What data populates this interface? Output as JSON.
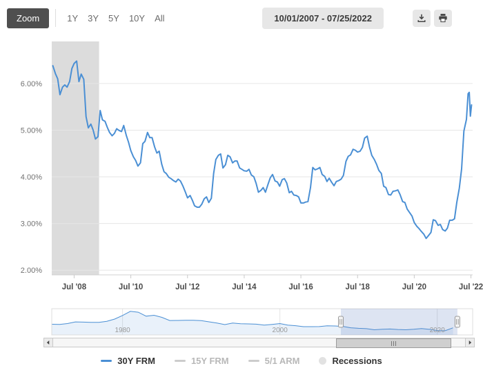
{
  "toolbar": {
    "zoom_label": "Zoom",
    "range_buttons": [
      "1Y",
      "3Y",
      "5Y",
      "10Y",
      "All"
    ],
    "date_range": "10/01/2007 - 07/25/2022"
  },
  "colors": {
    "accent_blue": "#4a8fd4",
    "recession_band": "#dcdcdc",
    "zoom_button_bg": "#4f4f4f",
    "toolbar_button_bg": "#e7e7e7"
  },
  "legend": {
    "items": [
      {
        "label": "30Y FRM",
        "swatch_color": "#4a8fd4",
        "text_color": "#333333",
        "type": "line",
        "active": true
      },
      {
        "label": "15Y FRM",
        "swatch_color": "#cccccc",
        "text_color": "#b8b8b8",
        "type": "line",
        "active": false
      },
      {
        "label": "5/1 ARM",
        "swatch_color": "#cccccc",
        "text_color": "#b8b8b8",
        "type": "line",
        "active": false
      },
      {
        "label": "Recessions",
        "swatch_color": "#e2e2e2",
        "text_color": "#333333",
        "type": "circle",
        "active": true
      }
    ]
  },
  "chart_data": [
    {
      "id": "main",
      "type": "line",
      "title": "",
      "xlabel": "",
      "ylabel": "",
      "grid": true,
      "xlim": [
        2007.75,
        2022.6
      ],
      "ylim": [
        1.9,
        6.9
      ],
      "yticks": [
        {
          "v": 2,
          "label": "2.00%"
        },
        {
          "v": 3,
          "label": "3.00%"
        },
        {
          "v": 4,
          "label": "4.00%"
        },
        {
          "v": 5,
          "label": "5.00%"
        },
        {
          "v": 6,
          "label": "6.00%"
        }
      ],
      "xticks": [
        {
          "v": 2008.54,
          "label": "Jul '08"
        },
        {
          "v": 2010.54,
          "label": "Jul '10"
        },
        {
          "v": 2012.54,
          "label": "Jul '12"
        },
        {
          "v": 2014.54,
          "label": "Jul '14"
        },
        {
          "v": 2016.54,
          "label": "Jul '16"
        },
        {
          "v": 2018.54,
          "label": "Jul '18"
        },
        {
          "v": 2020.54,
          "label": "Jul '20"
        },
        {
          "v": 2022.54,
          "label": "Jul '22"
        }
      ],
      "recession_bands": [
        {
          "start": 2007.75,
          "end": 2009.42,
          "color": "#dcdcdc"
        }
      ],
      "series": [
        {
          "name": "30Y FRM",
          "color": "#4a8fd4",
          "unit": "%",
          "points": [
            [
              2007.79,
              6.38
            ],
            [
              2007.88,
              6.21
            ],
            [
              2007.96,
              6.1
            ],
            [
              2008.04,
              5.76
            ],
            [
              2008.13,
              5.92
            ],
            [
              2008.21,
              5.97
            ],
            [
              2008.29,
              5.92
            ],
            [
              2008.38,
              6.04
            ],
            [
              2008.46,
              6.32
            ],
            [
              2008.54,
              6.43
            ],
            [
              2008.63,
              6.48
            ],
            [
              2008.71,
              6.04
            ],
            [
              2008.79,
              6.2
            ],
            [
              2008.88,
              6.09
            ],
            [
              2008.96,
              5.29
            ],
            [
              2009.04,
              5.05
            ],
            [
              2009.13,
              5.13
            ],
            [
              2009.21,
              5.0
            ],
            [
              2009.29,
              4.81
            ],
            [
              2009.38,
              4.86
            ],
            [
              2009.46,
              5.42
            ],
            [
              2009.54,
              5.22
            ],
            [
              2009.63,
              5.19
            ],
            [
              2009.71,
              5.06
            ],
            [
              2009.79,
              4.95
            ],
            [
              2009.88,
              4.88
            ],
            [
              2009.96,
              4.93
            ],
            [
              2010.04,
              5.03
            ],
            [
              2010.13,
              4.99
            ],
            [
              2010.21,
              4.97
            ],
            [
              2010.29,
              5.1
            ],
            [
              2010.38,
              4.89
            ],
            [
              2010.46,
              4.74
            ],
            [
              2010.54,
              4.56
            ],
            [
              2010.63,
              4.43
            ],
            [
              2010.71,
              4.35
            ],
            [
              2010.79,
              4.23
            ],
            [
              2010.88,
              4.3
            ],
            [
              2010.96,
              4.71
            ],
            [
              2011.04,
              4.76
            ],
            [
              2011.13,
              4.95
            ],
            [
              2011.21,
              4.84
            ],
            [
              2011.29,
              4.84
            ],
            [
              2011.38,
              4.64
            ],
            [
              2011.46,
              4.51
            ],
            [
              2011.54,
              4.55
            ],
            [
              2011.63,
              4.27
            ],
            [
              2011.71,
              4.11
            ],
            [
              2011.79,
              4.07
            ],
            [
              2011.88,
              3.99
            ],
            [
              2011.96,
              3.96
            ],
            [
              2012.04,
              3.92
            ],
            [
              2012.13,
              3.89
            ],
            [
              2012.21,
              3.95
            ],
            [
              2012.29,
              3.91
            ],
            [
              2012.38,
              3.8
            ],
            [
              2012.46,
              3.68
            ],
            [
              2012.54,
              3.55
            ],
            [
              2012.63,
              3.6
            ],
            [
              2012.71,
              3.5
            ],
            [
              2012.79,
              3.38
            ],
            [
              2012.88,
              3.35
            ],
            [
              2012.96,
              3.35
            ],
            [
              2013.04,
              3.41
            ],
            [
              2013.13,
              3.53
            ],
            [
              2013.21,
              3.57
            ],
            [
              2013.29,
              3.45
            ],
            [
              2013.38,
              3.54
            ],
            [
              2013.46,
              4.07
            ],
            [
              2013.54,
              4.37
            ],
            [
              2013.63,
              4.46
            ],
            [
              2013.71,
              4.49
            ],
            [
              2013.79,
              4.19
            ],
            [
              2013.88,
              4.26
            ],
            [
              2013.96,
              4.46
            ],
            [
              2014.04,
              4.43
            ],
            [
              2014.13,
              4.3
            ],
            [
              2014.21,
              4.34
            ],
            [
              2014.29,
              4.34
            ],
            [
              2014.38,
              4.19
            ],
            [
              2014.46,
              4.16
            ],
            [
              2014.54,
              4.13
            ],
            [
              2014.63,
              4.12
            ],
            [
              2014.71,
              4.16
            ],
            [
              2014.79,
              4.04
            ],
            [
              2014.88,
              4.0
            ],
            [
              2014.96,
              3.86
            ],
            [
              2015.04,
              3.67
            ],
            [
              2015.13,
              3.71
            ],
            [
              2015.21,
              3.77
            ],
            [
              2015.29,
              3.67
            ],
            [
              2015.38,
              3.84
            ],
            [
              2015.46,
              3.98
            ],
            [
              2015.54,
              4.05
            ],
            [
              2015.63,
              3.91
            ],
            [
              2015.71,
              3.89
            ],
            [
              2015.79,
              3.8
            ],
            [
              2015.88,
              3.94
            ],
            [
              2015.96,
              3.96
            ],
            [
              2016.04,
              3.87
            ],
            [
              2016.13,
              3.66
            ],
            [
              2016.21,
              3.69
            ],
            [
              2016.29,
              3.61
            ],
            [
              2016.38,
              3.6
            ],
            [
              2016.46,
              3.57
            ],
            [
              2016.54,
              3.44
            ],
            [
              2016.63,
              3.44
            ],
            [
              2016.71,
              3.46
            ],
            [
              2016.79,
              3.47
            ],
            [
              2016.88,
              3.77
            ],
            [
              2016.96,
              4.2
            ],
            [
              2017.04,
              4.15
            ],
            [
              2017.13,
              4.17
            ],
            [
              2017.21,
              4.2
            ],
            [
              2017.29,
              4.05
            ],
            [
              2017.38,
              4.01
            ],
            [
              2017.46,
              3.9
            ],
            [
              2017.54,
              3.97
            ],
            [
              2017.63,
              3.88
            ],
            [
              2017.71,
              3.81
            ],
            [
              2017.79,
              3.9
            ],
            [
              2017.88,
              3.92
            ],
            [
              2017.96,
              3.95
            ],
            [
              2018.04,
              4.03
            ],
            [
              2018.13,
              4.33
            ],
            [
              2018.21,
              4.44
            ],
            [
              2018.29,
              4.47
            ],
            [
              2018.38,
              4.59
            ],
            [
              2018.46,
              4.57
            ],
            [
              2018.54,
              4.53
            ],
            [
              2018.63,
              4.55
            ],
            [
              2018.71,
              4.63
            ],
            [
              2018.79,
              4.83
            ],
            [
              2018.88,
              4.87
            ],
            [
              2018.96,
              4.64
            ],
            [
              2019.04,
              4.46
            ],
            [
              2019.13,
              4.37
            ],
            [
              2019.21,
              4.27
            ],
            [
              2019.29,
              4.14
            ],
            [
              2019.38,
              4.07
            ],
            [
              2019.46,
              3.8
            ],
            [
              2019.54,
              3.77
            ],
            [
              2019.63,
              3.62
            ],
            [
              2019.71,
              3.61
            ],
            [
              2019.79,
              3.69
            ],
            [
              2019.88,
              3.7
            ],
            [
              2019.96,
              3.72
            ],
            [
              2020.04,
              3.62
            ],
            [
              2020.13,
              3.47
            ],
            [
              2020.21,
              3.45
            ],
            [
              2020.29,
              3.31
            ],
            [
              2020.38,
              3.23
            ],
            [
              2020.46,
              3.16
            ],
            [
              2020.54,
              3.02
            ],
            [
              2020.63,
              2.94
            ],
            [
              2020.71,
              2.89
            ],
            [
              2020.79,
              2.83
            ],
            [
              2020.88,
              2.77
            ],
            [
              2020.96,
              2.68
            ],
            [
              2021.04,
              2.74
            ],
            [
              2021.13,
              2.81
            ],
            [
              2021.21,
              3.08
            ],
            [
              2021.29,
              3.06
            ],
            [
              2021.38,
              2.96
            ],
            [
              2021.46,
              2.98
            ],
            [
              2021.54,
              2.87
            ],
            [
              2021.63,
              2.84
            ],
            [
              2021.71,
              2.9
            ],
            [
              2021.79,
              3.07
            ],
            [
              2021.88,
              3.07
            ],
            [
              2021.96,
              3.1
            ],
            [
              2022.04,
              3.45
            ],
            [
              2022.13,
              3.76
            ],
            [
              2022.21,
              4.17
            ],
            [
              2022.29,
              4.98
            ],
            [
              2022.38,
              5.23
            ],
            [
              2022.44,
              5.78
            ],
            [
              2022.48,
              5.81
            ],
            [
              2022.52,
              5.3
            ],
            [
              2022.56,
              5.54
            ]
          ]
        }
      ]
    },
    {
      "id": "navigator",
      "type": "area",
      "xlim": [
        1971,
        2024.5
      ],
      "ylim": [
        0,
        18.5
      ],
      "xticks": [
        {
          "v": 1980,
          "label": "1980"
        },
        {
          "v": 2000,
          "label": "2000"
        },
        {
          "v": 2020,
          "label": "2020"
        }
      ],
      "selected_range": [
        2007.75,
        2022.56
      ],
      "series": [
        {
          "name": "30Y FRM full history",
          "color": "#4a8fd4",
          "unit": "%",
          "points": [
            [
              1971,
              7.54
            ],
            [
              1972,
              7.38
            ],
            [
              1973,
              8.04
            ],
            [
              1974,
              9.19
            ],
            [
              1975,
              9.05
            ],
            [
              1976,
              8.87
            ],
            [
              1977,
              8.85
            ],
            [
              1978,
              9.64
            ],
            [
              1979,
              11.2
            ],
            [
              1980,
              13.74
            ],
            [
              1981,
              16.63
            ],
            [
              1982,
              16.04
            ],
            [
              1983,
              13.24
            ],
            [
              1984,
              13.88
            ],
            [
              1985,
              12.43
            ],
            [
              1986,
              10.19
            ],
            [
              1987,
              10.21
            ],
            [
              1988,
              10.34
            ],
            [
              1989,
              10.32
            ],
            [
              1990,
              10.13
            ],
            [
              1991,
              9.25
            ],
            [
              1992,
              8.39
            ],
            [
              1993,
              7.31
            ],
            [
              1994,
              8.38
            ],
            [
              1995,
              7.93
            ],
            [
              1996,
              7.81
            ],
            [
              1997,
              7.6
            ],
            [
              1998,
              6.94
            ],
            [
              1999,
              7.44
            ],
            [
              2000,
              8.05
            ],
            [
              2001,
              6.97
            ],
            [
              2002,
              6.54
            ],
            [
              2003,
              5.83
            ],
            [
              2004,
              5.84
            ],
            [
              2005,
              5.87
            ],
            [
              2006,
              6.41
            ],
            [
              2007,
              6.34
            ],
            [
              2008,
              6.03
            ],
            [
              2009,
              5.04
            ],
            [
              2010,
              4.69
            ],
            [
              2011,
              4.45
            ],
            [
              2012,
              3.66
            ],
            [
              2013,
              3.98
            ],
            [
              2014,
              4.17
            ],
            [
              2015,
              3.85
            ],
            [
              2016,
              3.65
            ],
            [
              2017,
              3.99
            ],
            [
              2018,
              4.54
            ],
            [
              2019,
              3.94
            ],
            [
              2020,
              3.11
            ],
            [
              2021,
              2.96
            ],
            [
              2022,
              5.0
            ]
          ]
        }
      ]
    }
  ]
}
